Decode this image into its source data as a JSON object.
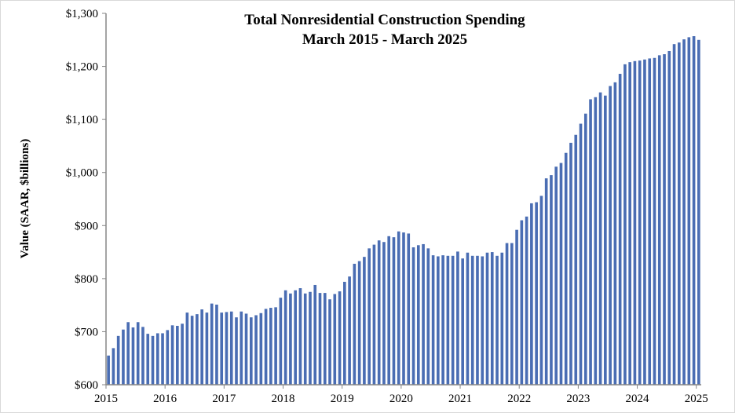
{
  "chart_data": {
    "type": "bar",
    "title": "Total Nonresidential Construction Spending",
    "subtitle": "March 2015 - March 2025",
    "xlabel": "",
    "ylabel": "Value (SAAR, $billions)",
    "start_month": "2015-03",
    "frequency": "monthly",
    "ylim": [
      600,
      1300
    ],
    "y_ticks": [
      600,
      700,
      800,
      900,
      1000,
      1100,
      1200,
      1300
    ],
    "y_tick_labels": [
      "$600",
      "$700",
      "$800",
      "$900",
      "$1,000",
      "$1,100",
      "$1,200",
      "$1,300"
    ],
    "x_tick_labels": [
      "2015",
      "2016",
      "2017",
      "2018",
      "2019",
      "2020",
      "2021",
      "2022",
      "2023",
      "2024",
      "2025"
    ],
    "grid": false,
    "bar_color": "#4a6db3",
    "values": [
      655,
      669,
      692,
      704,
      718,
      708,
      718,
      709,
      696,
      692,
      697,
      697,
      703,
      712,
      711,
      715,
      736,
      730,
      733,
      742,
      736,
      753,
      751,
      736,
      737,
      738,
      727,
      738,
      734,
      727,
      731,
      735,
      743,
      745,
      746,
      764,
      778,
      772,
      778,
      782,
      772,
      775,
      788,
      773,
      773,
      761,
      771,
      776,
      794,
      804,
      828,
      833,
      841,
      857,
      864,
      872,
      869,
      880,
      878,
      889,
      887,
      885,
      859,
      863,
      865,
      857,
      844,
      842,
      844,
      843,
      843,
      851,
      838,
      849,
      843,
      843,
      842,
      849,
      850,
      843,
      849,
      867,
      867,
      892,
      910,
      917,
      942,
      944,
      956,
      989,
      995,
      1011,
      1018,
      1037,
      1056,
      1071,
      1092,
      1111,
      1138,
      1142,
      1151,
      1145,
      1163,
      1170,
      1186,
      1204,
      1208,
      1210,
      1211,
      1213,
      1215,
      1216,
      1221,
      1223,
      1229,
      1242,
      1245,
      1251,
      1255,
      1257,
      1250
    ]
  }
}
